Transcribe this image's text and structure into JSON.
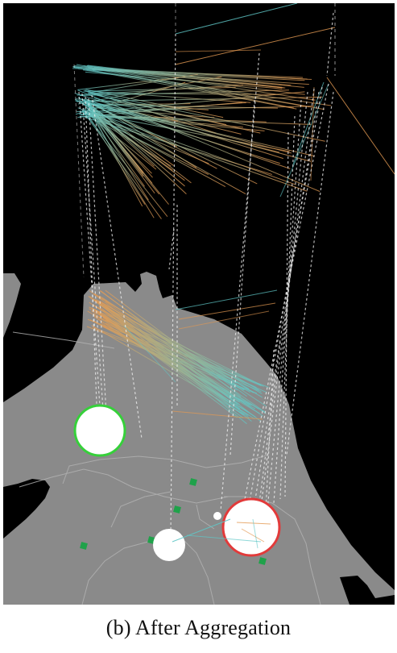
{
  "figure": {
    "caption": "(b) After Aggregation"
  },
  "colors": {
    "background": "#000000",
    "land": "#8a8a8a",
    "district_lines": "#b4b4b4",
    "edge_start": "#5fc7c7",
    "edge_end": "#e49a52",
    "vertical_links": "#f2f2f2",
    "marker": "#1fa24a",
    "cluster_green_ring": "#36d03a",
    "cluster_red_ring": "#e23a3a",
    "cluster_fill": "#ffffff"
  },
  "map": {
    "clusters": [
      {
        "name": "green-ring-cluster",
        "ring": "green",
        "selected": true
      },
      {
        "name": "white-cluster",
        "ring": "none",
        "selected": false
      },
      {
        "name": "red-ring-cluster",
        "ring": "red",
        "selected": true
      },
      {
        "name": "small-white-cluster",
        "ring": "none",
        "selected": false
      }
    ],
    "marker_count": 7
  }
}
